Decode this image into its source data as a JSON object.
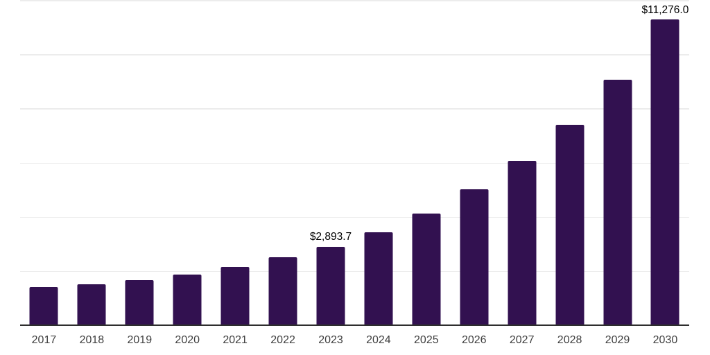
{
  "chart_data": {
    "type": "bar",
    "title": "",
    "xlabel": "",
    "ylabel": "",
    "categories": [
      "2017",
      "2018",
      "2019",
      "2020",
      "2021",
      "2022",
      "2023",
      "2024",
      "2025",
      "2026",
      "2027",
      "2028",
      "2029",
      "2030"
    ],
    "values": [
      1410,
      1510,
      1660,
      1860,
      2140,
      2500,
      2893.7,
      3440,
      4120,
      5010,
      6060,
      7400,
      9060,
      11276.0
    ],
    "data_labels": {
      "2023": "$2,893.7",
      "2030": "$11,276.0"
    },
    "ylim": [
      0,
      12000
    ],
    "gridline_interval": 2000,
    "grid_visible": true,
    "legend": "none",
    "colors": {
      "bar": "#321150",
      "gridline": "#ececec",
      "axis_line": "#2e2e2e",
      "data_label": "#000000",
      "tick_label": "#3f3f3f",
      "background": "#ffffff"
    }
  }
}
